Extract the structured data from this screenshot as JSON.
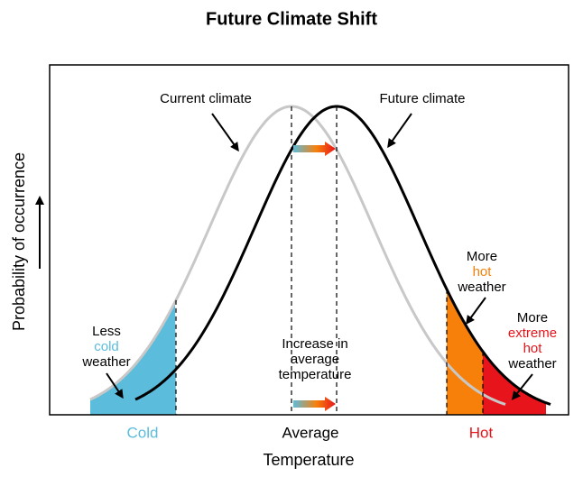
{
  "title": "Future Climate Shift",
  "axes": {
    "y_label": "Probability of occurrence",
    "x_label": "Temperature",
    "regions": [
      "Cold",
      "Average",
      "Hot"
    ]
  },
  "annotations": {
    "current": "Current climate",
    "future": "Future climate",
    "less_cold": [
      "Less",
      "cold",
      "weather"
    ],
    "more_hot": [
      "More",
      "hot",
      "weather"
    ],
    "more_extreme": [
      "More",
      "extreme",
      "hot",
      "weather"
    ],
    "increase": [
      "Increase in",
      "average",
      "temperature"
    ]
  }
}
